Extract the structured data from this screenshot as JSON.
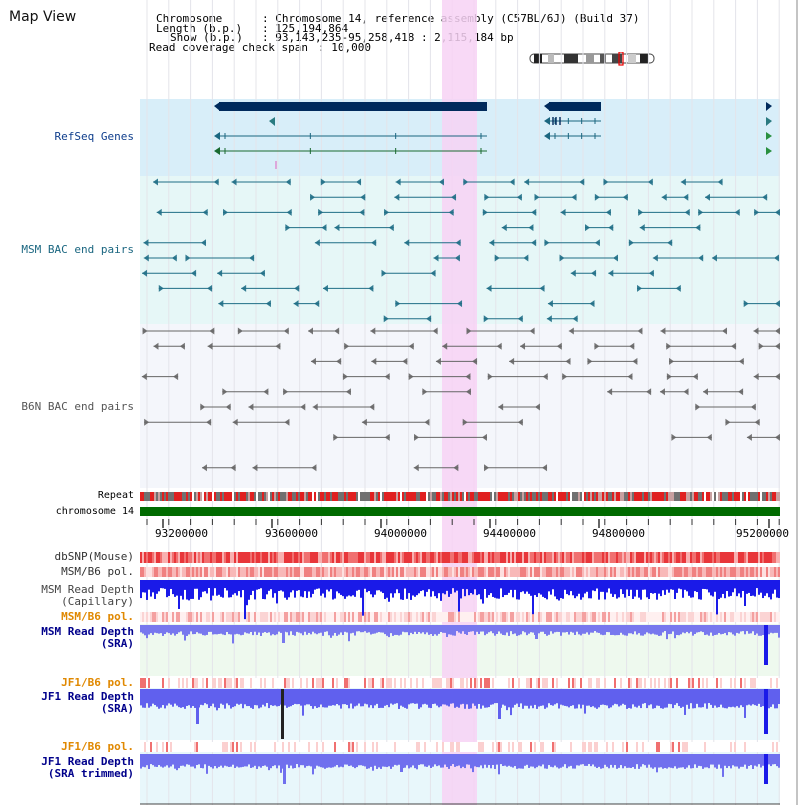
{
  "title": "Map View",
  "header": {
    "chromosome_key": "Chromosome",
    "chromosome_val": ": Chromosome 14, reference assembly (C57BL/6J) (Build 37)",
    "length_key": "Length (b.p.)",
    "length_val": ": 125,194,864",
    "show_key": "Show (b.p.)",
    "show_val": ": 93,143,235-95,258,418 : 2,115,184 bp",
    "coverage_key": "Read coverage check span",
    "coverage_val": ": 10,000"
  },
  "tracks": {
    "refseq": "RefSeq Genes",
    "msm_bac": "MSM BAC end pairs",
    "b6n_bac": "B6N BAC end pairs",
    "repeat": "Repeat",
    "chromosome": "chromosome 14",
    "dbsnp": "dbSNP(Mouse)",
    "msm_b6_pol_1": "MSM/B6 pol.",
    "msm_depth_cap_1": "MSM Read Depth",
    "msm_depth_cap_2": "(Capillary)",
    "msm_b6_pol_2": "MSM/B6 pol.",
    "msm_depth_sra_1": "MSM Read Depth",
    "msm_depth_sra_2": "(SRA)",
    "jf1_b6_pol_1": "JF1/B6 pol.",
    "jf1_depth_sra_1": "JF1 Read Depth",
    "jf1_depth_sra_2": "(SRA)",
    "jf1_b6_pol_2": "JF1/B6 pol.",
    "jf1_depth_trim_1": "JF1 Read Depth",
    "jf1_depth_trim_2": "(SRA trimmed)"
  },
  "axis": {
    "ticks": [
      "93200000",
      "93600000",
      "94000000",
      "94400000",
      "94800000",
      "95200000"
    ]
  },
  "colors": {
    "refseq_bg": "#d8eef9",
    "msm_bg": "#e6f7f7",
    "b6n_bg": "#f4f6fb",
    "highlight": "#f7d2f4",
    "gene_dark": "#002a5c",
    "msm_line": "#1f6e86",
    "b6n_line": "#666666",
    "chromosome_bar": "#006b00",
    "dbsnp_red": "#e8363a",
    "depth_blue": "#2020f0",
    "depth_light": "#7070f0",
    "label_navy": "#00008b",
    "label_orange": "#e08800",
    "label_teal": "#1a6680",
    "label_gray": "#444444"
  }
}
